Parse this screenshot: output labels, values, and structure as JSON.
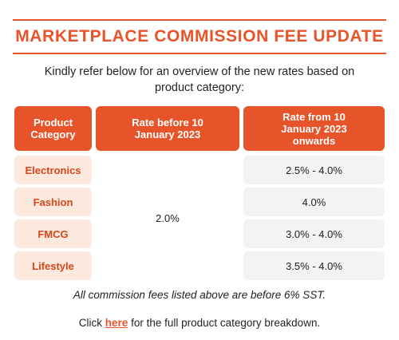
{
  "title": "MARKETPLACE COMMISSION FEE UPDATE",
  "intro": "Kindly refer below for an overview of the new rates based on product category:",
  "table": {
    "headers": {
      "category": "Product Category",
      "before": "Rate before 10 January 2023",
      "from": "Rate from 10 January 2023 onwards"
    },
    "before_rate": "2.0%",
    "rows": [
      {
        "category": "Electronics",
        "rate_from": "2.5% - 4.0%"
      },
      {
        "category": "Fashion",
        "rate_from": "4.0%"
      },
      {
        "category": "FMCG",
        "rate_from": "3.0% - 4.0%"
      },
      {
        "category": "Lifestyle",
        "rate_from": "3.5% - 4.0%"
      }
    ]
  },
  "note": "All commission fees listed above are before 6% SST.",
  "footer": {
    "prefix": "Click ",
    "link_text": "here",
    "suffix": " for the full product category breakdown."
  },
  "colors": {
    "accent": "#e8542a",
    "category_bg": "#fde9dd",
    "rate_bg": "#f3f3f3"
  }
}
